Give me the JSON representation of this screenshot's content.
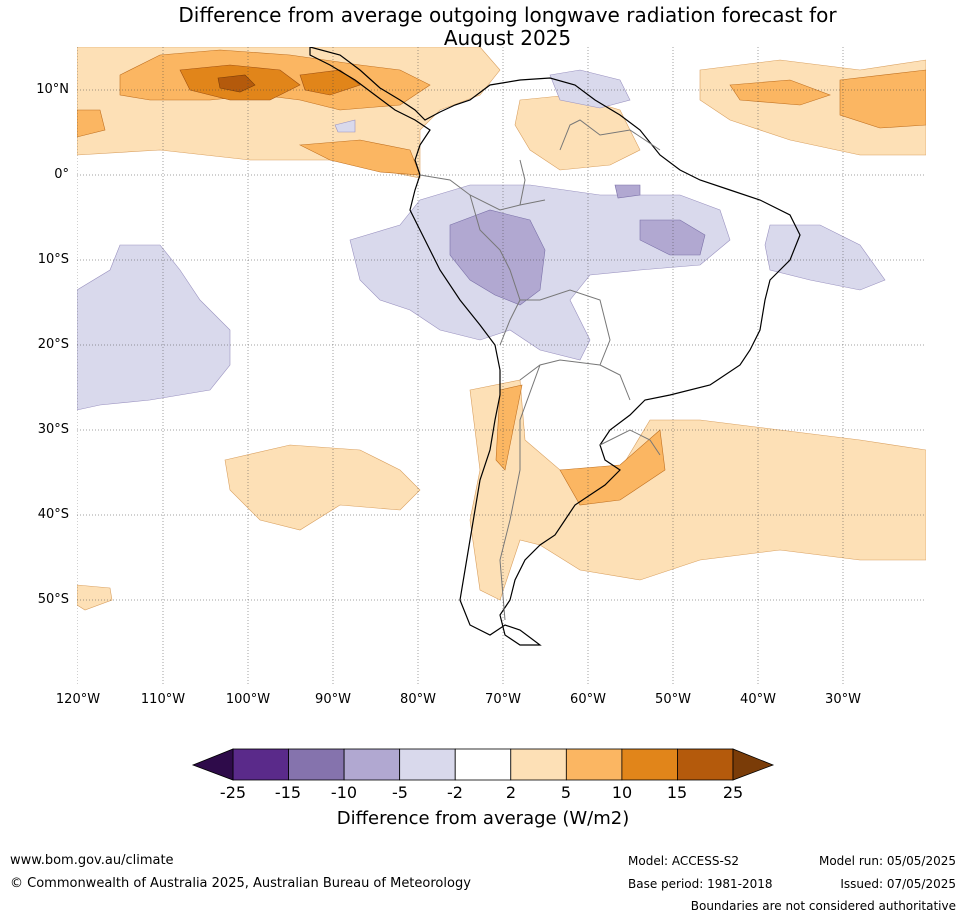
{
  "title_line1": "Difference from average outgoing longwave radiation forecast for",
  "title_line2": "August 2025",
  "lat_labels": [
    "10°N",
    "0°",
    "10°S",
    "20°S",
    "30°S",
    "40°S",
    "50°S"
  ],
  "lon_labels": [
    "120°W",
    "110°W",
    "100°W",
    "90°W",
    "80°W",
    "70°W",
    "60°W",
    "50°W",
    "40°W",
    "30°W"
  ],
  "colorbar": {
    "ticks": [
      "-25",
      "-15",
      "-10",
      "-5",
      "-2",
      "2",
      "5",
      "10",
      "15",
      "25"
    ],
    "colors": [
      "#5a2a8a",
      "#8573ad",
      "#b1a8d1",
      "#d9d9ec",
      "#ffffff",
      "#fde0b6",
      "#fbb662",
      "#e1851a",
      "#b45a0c"
    ],
    "low_extend_color": "#2e0b4a",
    "high_extend_color": "#7a3c08",
    "label": "Difference from average (W/m2)"
  },
  "footer": {
    "website": "www.bom.gov.au/climate",
    "copyright": "© Commonwealth of Australia 2025, Australian Bureau of Meteorology",
    "model": "Model: ACCESS-S2",
    "base_period": "Base period: 1981-2018",
    "model_run": "Model run: 05/05/2025",
    "issued": "Issued: 07/05/2025",
    "boundaries": "Boundaries are not considered authoritative"
  }
}
